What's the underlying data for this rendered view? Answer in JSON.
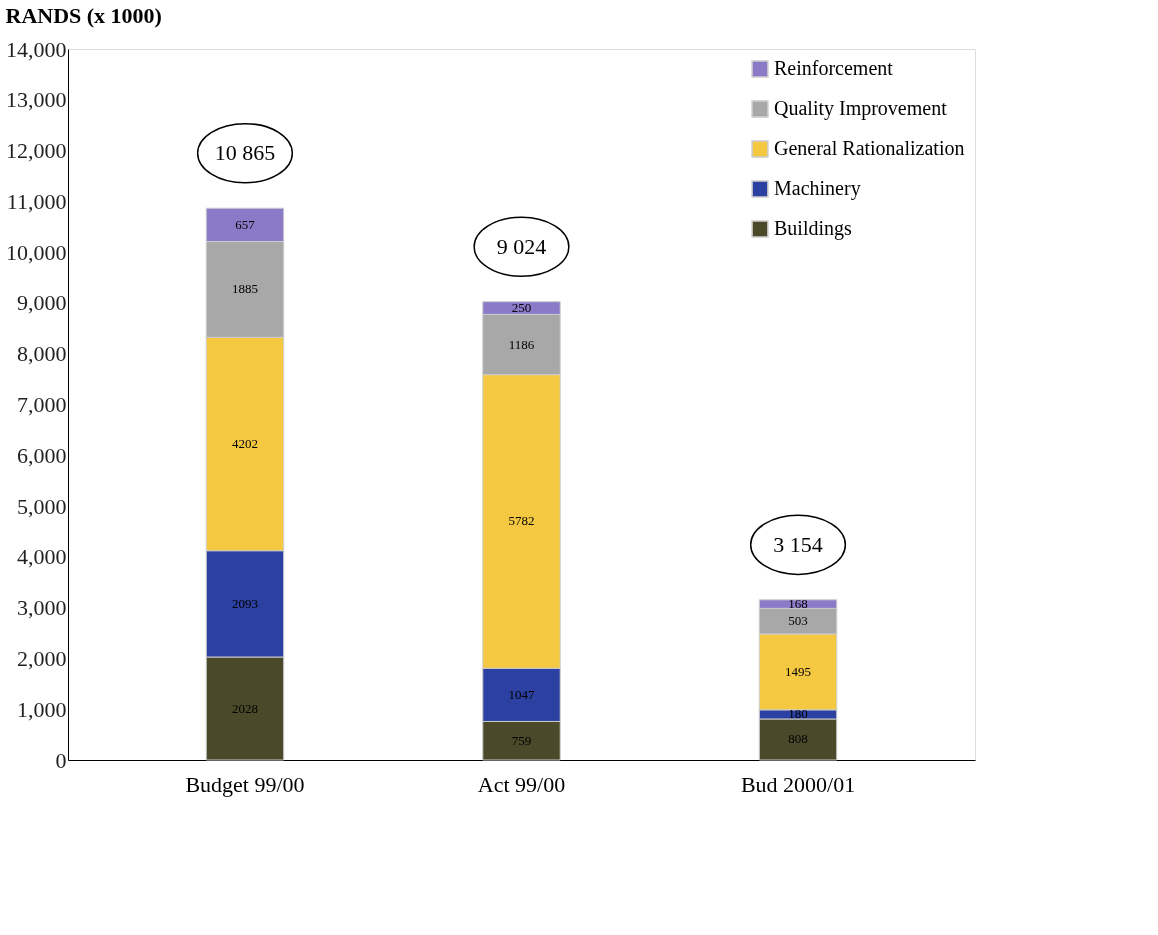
{
  "chart_data": {
    "type": "bar",
    "stacked": true,
    "ylabel": "RANDS (x 1000)",
    "categories": [
      "Budget 99/00",
      "Act 99/00",
      "Bud 2000/01"
    ],
    "series": [
      {
        "name": "Buildings",
        "color": "#4a4a2a",
        "values": [
          2028,
          759,
          808
        ]
      },
      {
        "name": "Machinery",
        "color": "#2b40a0",
        "values": [
          2093,
          1047,
          180
        ]
      },
      {
        "name": "General Rationalization",
        "color": "#f5c842",
        "values": [
          4202,
          5782,
          1495
        ]
      },
      {
        "name": "Quality Improvement",
        "color": "#a8a8a8",
        "values": [
          1885,
          1186,
          503
        ]
      },
      {
        "name": "Reinforcement",
        "color": "#8a7ac8",
        "values": [
          657,
          250,
          168
        ]
      }
    ],
    "totals": [
      "10 865",
      "9 024",
      "3 154"
    ],
    "ylim": [
      0,
      14000
    ],
    "yticks": [
      {
        "value": 0,
        "label": "0"
      },
      {
        "value": 1000,
        "label": "1,000"
      },
      {
        "value": 2000,
        "label": "2,000"
      },
      {
        "value": 3000,
        "label": "3,000"
      },
      {
        "value": 4000,
        "label": "4,000"
      },
      {
        "value": 5000,
        "label": "5,000"
      },
      {
        "value": 6000,
        "label": "6,000"
      },
      {
        "value": 7000,
        "label": "7,000"
      },
      {
        "value": 8000,
        "label": "8,000"
      },
      {
        "value": 9000,
        "label": "9,000"
      },
      {
        "value": 10000,
        "label": "10,000"
      },
      {
        "value": 11000,
        "label": "11,000"
      },
      {
        "value": 12000,
        "label": "12,000"
      },
      {
        "value": 13000,
        "label": "13,000"
      },
      {
        "value": 14000,
        "label": "14,000"
      }
    ],
    "data_labels": true,
    "grid": false,
    "legend": "top right"
  }
}
